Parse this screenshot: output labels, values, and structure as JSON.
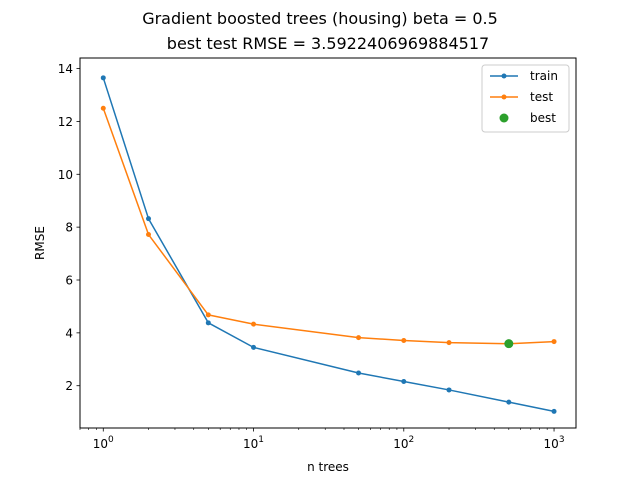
{
  "chart_data": {
    "type": "line",
    "title_line1": "Gradient boosted trees (housing) beta = 0.5",
    "title_line2": "best test RMSE = 3.5922406969884517",
    "xlabel": "n trees",
    "ylabel": "RMSE",
    "xscale": "log",
    "xlim": [
      0.7,
      1400
    ],
    "ylim": [
      0.4,
      14.4
    ],
    "x_ticks": [
      {
        "value": 1,
        "label_base": "10",
        "label_exp": "0"
      },
      {
        "value": 10,
        "label_base": "10",
        "label_exp": "1"
      },
      {
        "value": 100,
        "label_base": "10",
        "label_exp": "2"
      },
      {
        "value": 1000,
        "label_base": "10",
        "label_exp": "3"
      }
    ],
    "y_ticks": [
      2,
      4,
      6,
      8,
      10,
      12,
      14
    ],
    "x": [
      1,
      2,
      5,
      10,
      50,
      100,
      200,
      500,
      1000
    ],
    "series": [
      {
        "name": "train",
        "color": "#1f77b4",
        "values": [
          13.65,
          8.32,
          4.38,
          3.45,
          2.48,
          2.16,
          1.84,
          1.38,
          1.03
        ]
      },
      {
        "name": "test",
        "color": "#ff7f0e",
        "values": [
          12.5,
          7.72,
          4.68,
          4.33,
          3.82,
          3.71,
          3.63,
          3.59,
          3.67
        ]
      }
    ],
    "best": {
      "name": "best",
      "color": "#2ca02c",
      "x": 500,
      "y": 3.5922406969884517
    },
    "legend": {
      "placement": "top-right",
      "entries": [
        "train",
        "test",
        "best"
      ]
    },
    "grid": false
  }
}
